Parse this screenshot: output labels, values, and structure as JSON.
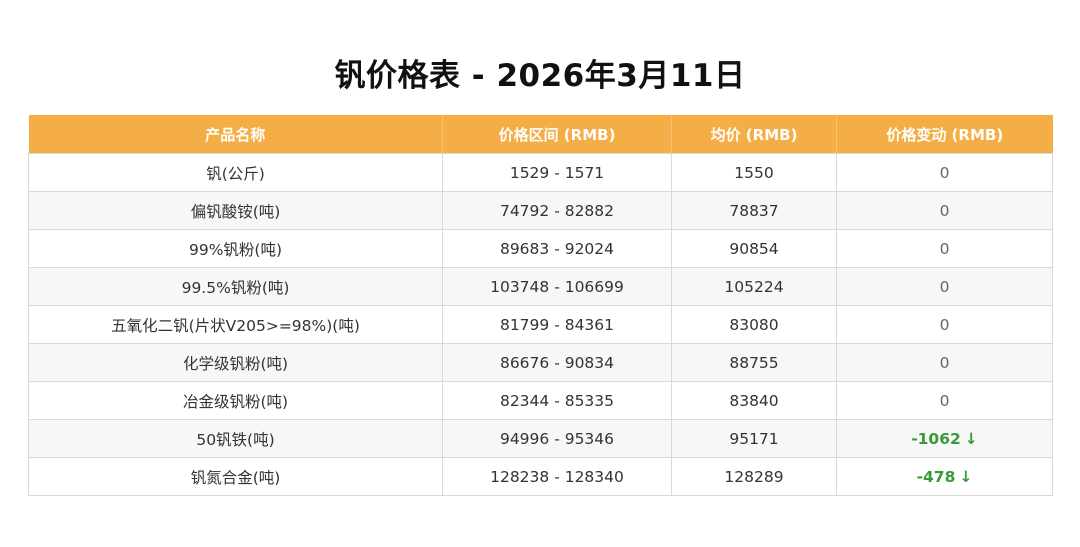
{
  "title": "钒价格表 - 2026年3月11日",
  "table": {
    "headers": [
      "产品名称",
      "价格区间 (RMB)",
      "均价 (RMB)",
      "价格变动 (RMB)"
    ],
    "rows": [
      {
        "name": "钒(公斤)",
        "range": "1529 - 1571",
        "avg": "1550",
        "change": "0",
        "arrow": ""
      },
      {
        "name": "偏钒酸铵(吨)",
        "range": "74792 - 82882",
        "avg": "78837",
        "change": "0",
        "arrow": ""
      },
      {
        "name": "99%钒粉(吨)",
        "range": "89683 - 92024",
        "avg": "90854",
        "change": "0",
        "arrow": ""
      },
      {
        "name": "99.5%钒粉(吨)",
        "range": "103748 - 106699",
        "avg": "105224",
        "change": "0",
        "arrow": ""
      },
      {
        "name": "五氧化二钒(片状V205>=98%)(吨)",
        "range": "81799 - 84361",
        "avg": "83080",
        "change": "0",
        "arrow": ""
      },
      {
        "name": "化学级钒粉(吨)",
        "range": "86676 - 90834",
        "avg": "88755",
        "change": "0",
        "arrow": ""
      },
      {
        "name": "冶金级钒粉(吨)",
        "range": "82344 - 85335",
        "avg": "83840",
        "change": "0",
        "arrow": ""
      },
      {
        "name": "50钒铁(吨)",
        "range": "94996 - 95346",
        "avg": "95171",
        "change": "-1062",
        "arrow": "↓"
      },
      {
        "name": "钒氮合金(吨)",
        "range": "128238 - 128340",
        "avg": "128289",
        "change": "-478",
        "arrow": "↓"
      }
    ]
  },
  "colors": {
    "header_bg": "#f5ad45",
    "header_text": "#ffffff",
    "decrease": "#3a9a3a",
    "row_alt": "#f7f7f7"
  }
}
